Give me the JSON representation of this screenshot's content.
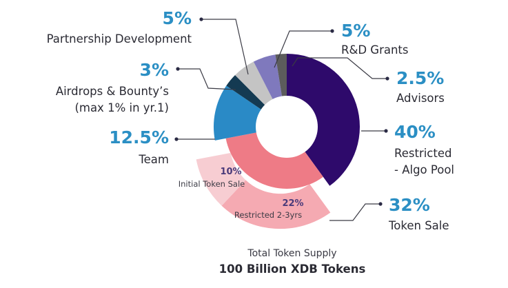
{
  "chart_data": {
    "type": "pie",
    "style": "donut",
    "slices": [
      {
        "id": "algo",
        "value": 40,
        "pct_label": "40%",
        "label_lines": [
          "Restricted",
          "- Algo Pool"
        ],
        "color": "#2e0a6b"
      },
      {
        "id": "sale",
        "value": 32,
        "pct_label": "32%",
        "label_lines": [
          "Token Sale"
        ],
        "color": "#ee7b86",
        "sub_slices": [
          {
            "id": "restricted",
            "value": 22,
            "pct_label": "22%",
            "label": "Restricted 2-3yrs",
            "color": "#f5aab2"
          },
          {
            "id": "initial",
            "value": 10,
            "pct_label": "10%",
            "label": "Initial Token Sale",
            "color": "#f7cdd2"
          }
        ]
      },
      {
        "id": "team",
        "value": 12.5,
        "pct_label": "12.5%",
        "label_lines": [
          "Team"
        ],
        "color": "#2a8ac6"
      },
      {
        "id": "airdrops",
        "value": 3,
        "pct_label": "3%",
        "label_lines": [
          "Airdrops & Bounty’s",
          "(max 1% in yr.1)"
        ],
        "color": "#143a52"
      },
      {
        "id": "partner",
        "value": 5,
        "pct_label": "5%",
        "label_lines": [
          "Partnership Development"
        ],
        "color": "#c4c4c4"
      },
      {
        "id": "rd",
        "value": 5,
        "pct_label": "5%",
        "label_lines": [
          "R&D Grants"
        ],
        "color": "#7f79bd"
      },
      {
        "id": "advisors",
        "value": 2.5,
        "pct_label": "2.5%",
        "label_lines": [
          "Advisors"
        ],
        "color": "#5c5c5c"
      }
    ],
    "footer": {
      "line1": "Total Token Supply",
      "line2": "100 Billion XDB Tokens"
    }
  },
  "colors": {
    "accent": "#2b8fc4",
    "leader": "#3a3a44"
  }
}
